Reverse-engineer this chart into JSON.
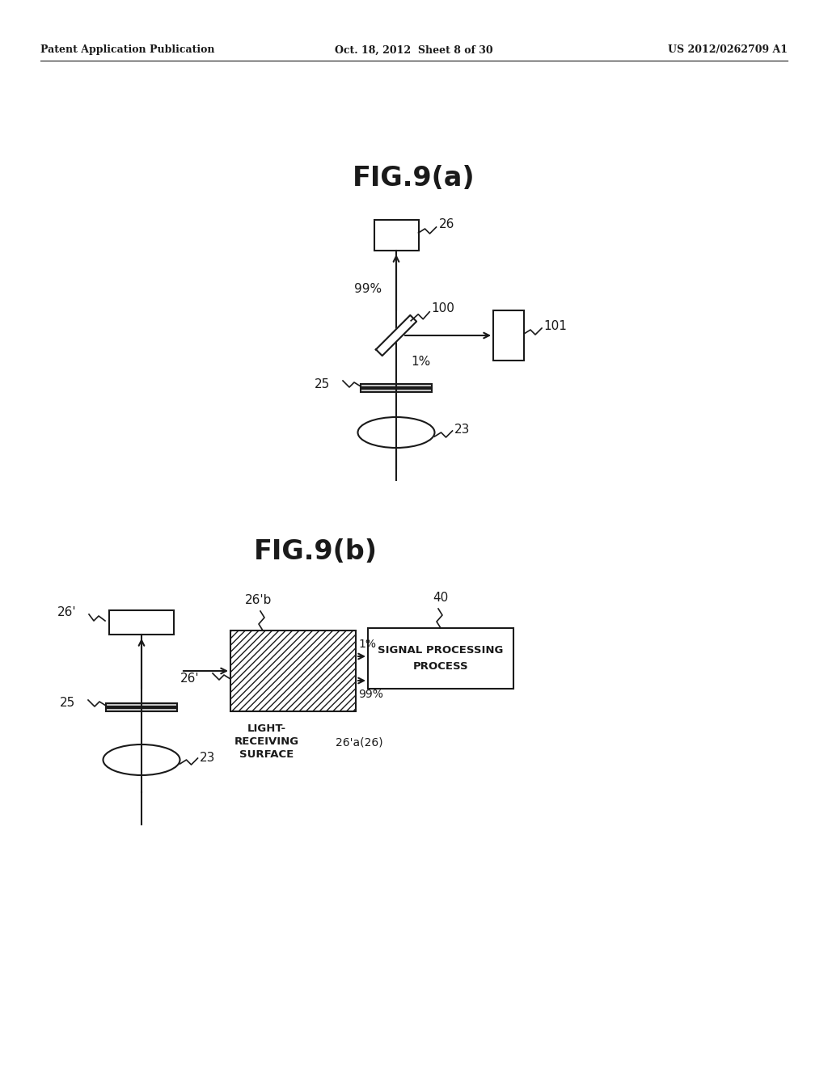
{
  "bg_color": "#ffffff",
  "header_left": "Patent Application Publication",
  "header_mid": "Oct. 18, 2012  Sheet 8 of 30",
  "header_right": "US 2012/0262709 A1",
  "fig_a_title": "FIG.9(a)",
  "fig_b_title": "FIG.9(b)",
  "line_color": "#1a1a1a"
}
